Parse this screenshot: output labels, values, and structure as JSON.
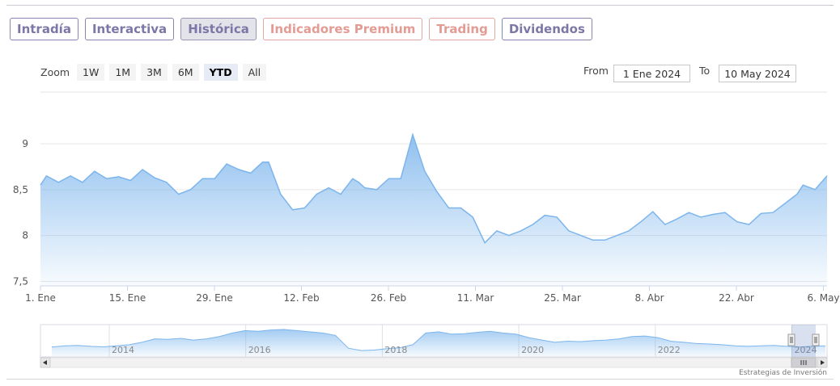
{
  "tabs": [
    {
      "label": "Intradía",
      "style": "normal"
    },
    {
      "label": "Interactiva",
      "style": "normal"
    },
    {
      "label": "Histórica",
      "style": "active"
    },
    {
      "label": "Indicadores Premium",
      "style": "premium"
    },
    {
      "label": "Trading",
      "style": "premium"
    },
    {
      "label": "Dividendos",
      "style": "normal"
    }
  ],
  "zoom": {
    "label": "Zoom",
    "buttons": [
      "1W",
      "1M",
      "3M",
      "6M",
      "YTD",
      "All"
    ],
    "selected": "YTD"
  },
  "date_range": {
    "from_label": "From",
    "from_value": "1 Ene 2024",
    "to_label": "To",
    "to_value": "10 May 2024"
  },
  "colors": {
    "tab_border": "#8a84b2",
    "premium": "#e39b94",
    "series_line": "#7cb5ec",
    "series_fill": "#a9ccf2"
  },
  "chart_data": [
    {
      "type": "area",
      "x_tick_labels": [
        "1. Ene",
        "15. Ene",
        "29. Ene",
        "12. Feb",
        "26. Feb",
        "11. Mar",
        "25. Mar",
        "8. Abr",
        "22. Abr",
        "6. May"
      ],
      "y_tick_labels": [
        "7,5",
        "8",
        "8,5",
        "9"
      ],
      "ylim": [
        7.45,
        9.6
      ],
      "x_range_days": [
        0,
        131
      ],
      "grid": true,
      "series": [
        {
          "x": [
            0,
            1,
            3,
            5,
            7,
            9,
            11,
            13,
            15,
            17,
            19,
            21,
            23,
            25,
            27,
            29,
            31,
            33,
            35,
            37,
            38,
            40,
            42,
            44,
            46,
            48,
            50,
            52,
            53,
            54,
            56,
            58,
            60,
            62,
            64,
            66,
            68,
            70,
            72,
            74,
            76,
            78,
            80,
            82,
            84,
            86,
            88,
            90,
            92,
            94,
            96,
            98,
            100,
            102,
            104,
            106,
            108,
            110,
            112,
            114,
            116,
            118,
            120,
            122,
            124,
            126,
            127,
            129,
            131
          ],
          "values": [
            8.55,
            8.65,
            8.58,
            8.65,
            8.58,
            8.7,
            8.62,
            8.64,
            8.6,
            8.72,
            8.63,
            8.58,
            8.45,
            8.5,
            8.62,
            8.62,
            8.78,
            8.72,
            8.68,
            8.8,
            8.8,
            8.45,
            8.28,
            8.3,
            8.45,
            8.52,
            8.45,
            8.62,
            8.58,
            8.52,
            8.5,
            8.62,
            8.62,
            9.1,
            8.7,
            8.48,
            8.3,
            8.3,
            8.2,
            7.92,
            8.05,
            8.0,
            8.05,
            8.12,
            8.22,
            8.2,
            8.05,
            8.0,
            7.95,
            7.95,
            8.0,
            8.05,
            8.15,
            8.26,
            8.12,
            8.18,
            8.25,
            8.2,
            8.23,
            8.25,
            8.15,
            8.12,
            8.24,
            8.25,
            8.35,
            8.45,
            8.55,
            8.5,
            8.65
          ]
        }
      ]
    },
    {
      "type": "area",
      "x_tick_labels": [
        "2014",
        "2016",
        "2018",
        "2020",
        "2022",
        "2024"
      ],
      "series": [
        {
          "x": [
            0,
            1,
            2,
            3,
            4,
            5,
            6,
            7,
            8,
            9,
            10,
            11,
            12,
            13,
            14,
            15,
            16,
            17,
            18,
            19,
            20,
            21,
            22,
            23,
            24,
            25,
            26,
            27,
            28,
            29,
            30,
            31,
            32,
            33,
            34,
            35,
            36,
            37,
            38,
            39,
            40,
            41,
            42,
            43,
            44,
            45,
            46,
            47,
            48,
            49,
            50,
            51,
            52,
            53,
            54,
            55,
            56,
            57,
            58,
            59,
            60
          ],
          "values": [
            0.25,
            0.3,
            0.32,
            0.28,
            0.26,
            0.3,
            0.35,
            0.45,
            0.6,
            0.58,
            0.62,
            0.55,
            0.6,
            0.7,
            0.85,
            0.95,
            0.92,
            0.98,
            1.0,
            0.95,
            0.9,
            0.85,
            0.75,
            0.2,
            0.1,
            0.12,
            0.18,
            0.22,
            0.35,
            0.85,
            0.9,
            0.8,
            0.82,
            0.88,
            0.92,
            0.85,
            0.8,
            0.65,
            0.55,
            0.45,
            0.5,
            0.48,
            0.52,
            0.55,
            0.6,
            0.7,
            0.72,
            0.65,
            0.5,
            0.45,
            0.4,
            0.38,
            0.35,
            0.3,
            0.28,
            0.3,
            0.32,
            0.28,
            0.25,
            0.28,
            0.3
          ]
        }
      ]
    }
  ],
  "credit": "Estrategias de Inversión"
}
